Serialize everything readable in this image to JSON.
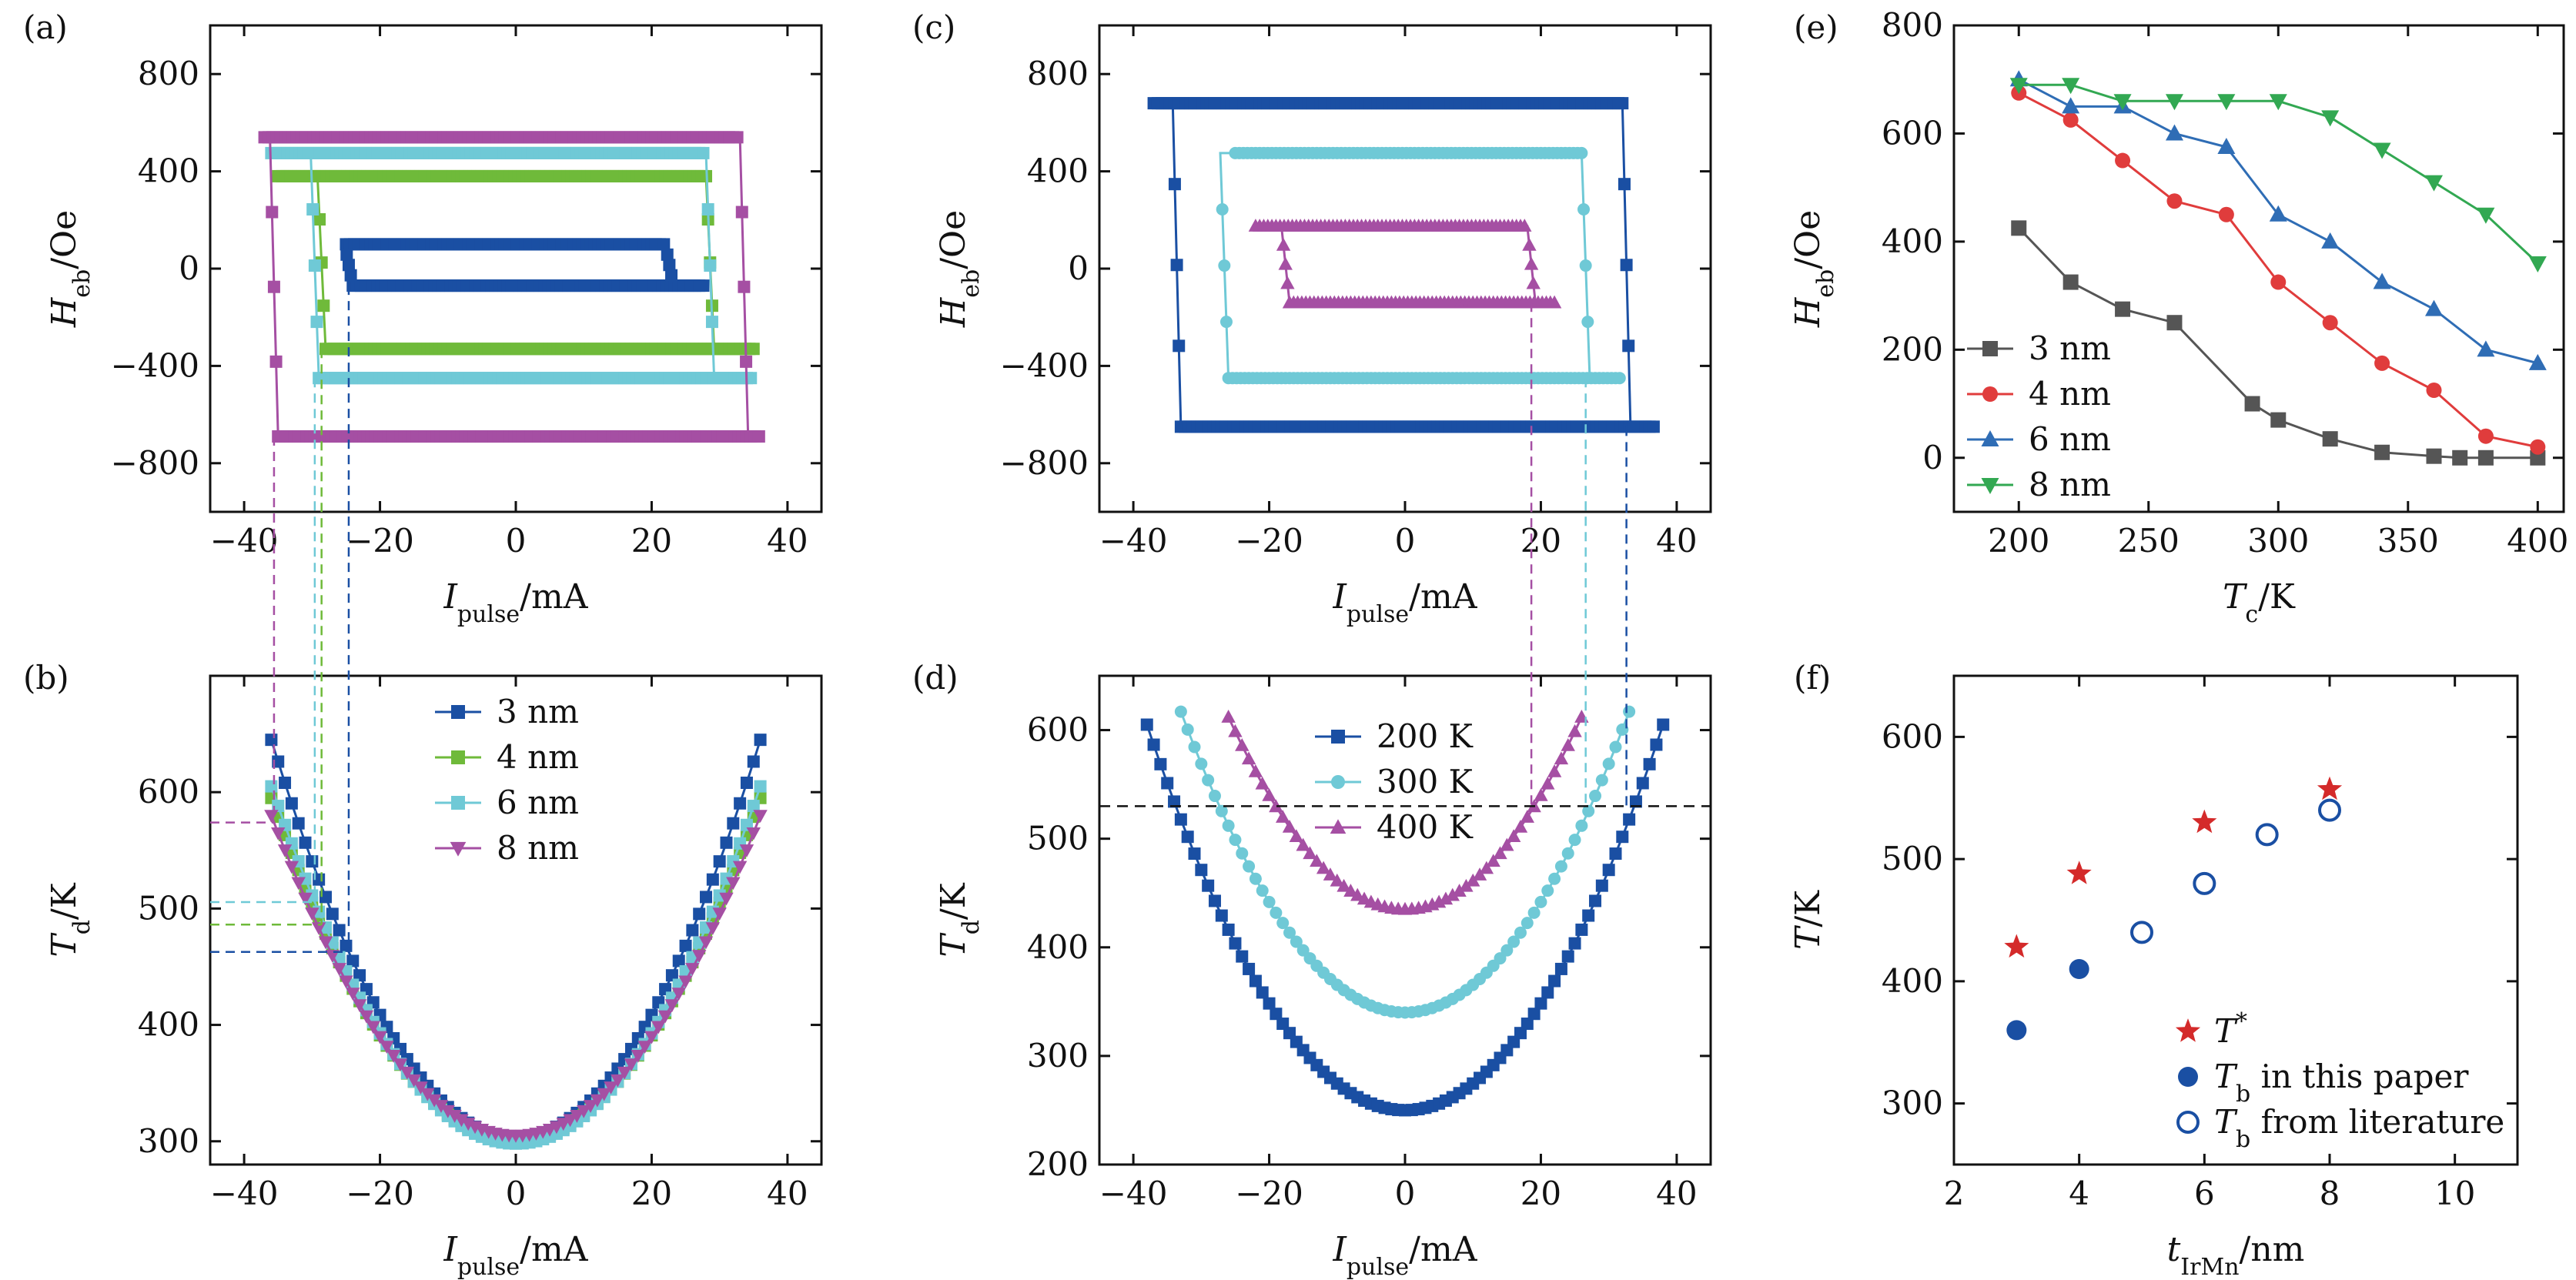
{
  "colors": {
    "nm3": "#1a4fa3",
    "nm4": "#6fba3a",
    "nm6": "#6fc9d6",
    "nm8": "#a54fa3",
    "k200": "#1a4fa3",
    "k300": "#6fc9d6",
    "k400": "#a54fa3",
    "e3": "#555555",
    "e4": "#e03c3c",
    "e6": "#2f6db5",
    "e8": "#32a852",
    "star": "#d42a2a",
    "dot": "#1a4fa3",
    "axis": "#111111"
  },
  "chart_data": [
    {
      "id": "a",
      "panel_label": "(a)",
      "type": "line",
      "xlabel_main": "I",
      "xlabel_sub": "pulse",
      "xlabel_unit": "/mA",
      "ylabel_main": "H",
      "ylabel_sub": "eb",
      "ylabel_unit": "/Oe",
      "xlim": [
        -45,
        45
      ],
      "ylim": [
        -1000,
        1000
      ],
      "xticks": [
        -40,
        -20,
        0,
        20,
        40
      ],
      "xticklabels": [
        "−40",
        "−20",
        "0",
        "20",
        "40"
      ],
      "yticks": [
        -800,
        -400,
        0,
        400,
        800
      ],
      "yticklabels": [
        "−800",
        "−400",
        "0",
        "400",
        "800"
      ],
      "series": [
        {
          "name": "3 nm",
          "color_key": "nm3",
          "marker": "square",
          "upper": 100,
          "lower": -70,
          "xmin": -25,
          "xmax": 28,
          "sw_right": 22,
          "sw_left": -24
        },
        {
          "name": "4 nm",
          "color_key": "nm4",
          "marker": "square",
          "upper": 380,
          "lower": -330,
          "xmin": -35,
          "xmax": 35,
          "sw_right": 28,
          "sw_left": -28
        },
        {
          "name": "6 nm",
          "color_key": "nm6",
          "marker": "square",
          "upper": 475,
          "lower": -450,
          "xmin": -36,
          "xmax": 35,
          "sw_right": 28,
          "sw_left": -29
        },
        {
          "name": "8 nm",
          "color_key": "nm8",
          "marker": "square",
          "upper": 540,
          "lower": -690,
          "xmin": -37,
          "xmax": 36,
          "sw_right": 33,
          "sw_left": -35
        }
      ]
    },
    {
      "id": "b",
      "panel_label": "(b)",
      "type": "line",
      "xlabel_main": "I",
      "xlabel_sub": "pulse",
      "xlabel_unit": "/mA",
      "ylabel_main": "T",
      "ylabel_sub": "d",
      "ylabel_unit": "/K",
      "xlim": [
        -45,
        45
      ],
      "ylim": [
        280,
        700
      ],
      "xticks": [
        -40,
        -20,
        0,
        20,
        40
      ],
      "xticklabels": [
        "−40",
        "−20",
        "0",
        "20",
        "40"
      ],
      "yticks": [
        300,
        400,
        500,
        600
      ],
      "yticklabels": [
        "300",
        "400",
        "500",
        "600"
      ],
      "series": [
        {
          "name": "3 nm",
          "color_key": "nm3",
          "marker": "square",
          "T0": 303,
          "Tend": 645,
          "xmax": 36
        },
        {
          "name": "4 nm",
          "color_key": "nm4",
          "marker": "square",
          "T0": 300,
          "Tend": 595,
          "xmax": 36
        },
        {
          "name": "6 nm",
          "color_key": "nm6",
          "marker": "square",
          "T0": 298,
          "Tend": 605,
          "xmax": 36
        },
        {
          "name": "8 nm",
          "color_key": "nm8",
          "marker": "triangle-down",
          "T0": 305,
          "Tend": 580,
          "xmax": 36
        }
      ],
      "guide_T": [
        433,
        471,
        517,
        563
      ]
    },
    {
      "id": "c",
      "panel_label": "(c)",
      "type": "line",
      "xlabel_main": "I",
      "xlabel_sub": "pulse",
      "xlabel_unit": "/mA",
      "ylabel_main": "H",
      "ylabel_sub": "eb",
      "ylabel_unit": "/Oe",
      "xlim": [
        -45,
        45
      ],
      "ylim": [
        -1000,
        1000
      ],
      "xticks": [
        -40,
        -20,
        0,
        20,
        40
      ],
      "xticklabels": [
        "−40",
        "−20",
        "0",
        "20",
        "40"
      ],
      "yticks": [
        -800,
        -400,
        0,
        400,
        800
      ],
      "yticklabels": [
        "−800",
        "−400",
        "0",
        "400",
        "800"
      ],
      "series": [
        {
          "name": "200 K",
          "color_key": "k200",
          "marker": "square",
          "upper": 680,
          "lower": -650,
          "xmin": -37,
          "xmax": 37,
          "sw_right": 32,
          "sw_left": -33
        },
        {
          "name": "300 K",
          "color_key": "k300",
          "marker": "circle",
          "upper": 475,
          "lower": -450,
          "xmin": -25,
          "xmax": 32,
          "sw_right": 26,
          "sw_left": -26
        },
        {
          "name": "400 K",
          "color_key": "k400",
          "marker": "triangle",
          "upper": 175,
          "lower": -140,
          "xmin": -22,
          "xmax": 22,
          "sw_right": 18,
          "sw_left": -17
        }
      ]
    },
    {
      "id": "d",
      "panel_label": "(d)",
      "type": "line",
      "xlabel_main": "I",
      "xlabel_sub": "pulse",
      "xlabel_unit": "/mA",
      "ylabel_main": "T",
      "ylabel_sub": "d",
      "ylabel_unit": "/K",
      "xlim": [
        -45,
        45
      ],
      "ylim": [
        200,
        650
      ],
      "xticks": [
        -40,
        -20,
        0,
        20,
        40
      ],
      "xticklabels": [
        "−40",
        "−20",
        "0",
        "20",
        "40"
      ],
      "yticks": [
        200,
        300,
        400,
        500,
        600
      ],
      "yticklabels": [
        "200",
        "300",
        "400",
        "500",
        "600"
      ],
      "series": [
        {
          "name": "200 K",
          "color_key": "k200",
          "marker": "square",
          "T0": 250,
          "Tend": 605,
          "xmax": 38
        },
        {
          "name": "300 K",
          "color_key": "k300",
          "marker": "circle",
          "T0": 340,
          "Tend": 617,
          "xmax": 33
        },
        {
          "name": "400 K",
          "color_key": "k400",
          "marker": "triangle",
          "T0": 435,
          "Tend": 612,
          "xmax": 26
        }
      ],
      "hline_T": 530
    },
    {
      "id": "e",
      "panel_label": "(e)",
      "type": "line",
      "xlabel_main": "T",
      "xlabel_sub": "c",
      "xlabel_unit": "/K",
      "ylabel_main": "H",
      "ylabel_sub": "eb",
      "ylabel_unit": "/Oe",
      "xlim": [
        175,
        410
      ],
      "ylim": [
        -100,
        800
      ],
      "xticks": [
        200,
        250,
        300,
        350,
        400
      ],
      "xticklabels": [
        "200",
        "250",
        "300",
        "350",
        "400"
      ],
      "yticks": [
        0,
        200,
        400,
        600,
        800
      ],
      "yticklabels": [
        "0",
        "200",
        "400",
        "600",
        "800"
      ],
      "series": [
        {
          "name": "3 nm",
          "color_key": "e3",
          "marker": "square",
          "x": [
            200,
            220,
            240,
            260,
            290,
            300,
            320,
            340,
            360,
            370,
            380,
            400
          ],
          "y": [
            425,
            325,
            275,
            250,
            100,
            70,
            35,
            10,
            3,
            0,
            0,
            0
          ]
        },
        {
          "name": "4 nm",
          "color_key": "e4",
          "marker": "circle",
          "x": [
            200,
            220,
            240,
            260,
            280,
            300,
            320,
            340,
            360,
            380,
            400
          ],
          "y": [
            675,
            625,
            550,
            475,
            450,
            325,
            250,
            175,
            125,
            40,
            20
          ]
        },
        {
          "name": "6 nm",
          "color_key": "e6",
          "marker": "triangle",
          "x": [
            200,
            220,
            240,
            260,
            280,
            300,
            320,
            340,
            360,
            380,
            400
          ],
          "y": [
            700,
            650,
            650,
            600,
            575,
            450,
            400,
            325,
            275,
            200,
            175
          ]
        },
        {
          "name": "8 nm",
          "color_key": "e8",
          "marker": "triangle-down",
          "x": [
            200,
            220,
            240,
            260,
            280,
            300,
            320,
            340,
            360,
            380,
            400
          ],
          "y": [
            690,
            690,
            660,
            660,
            660,
            660,
            630,
            570,
            510,
            450,
            360
          ]
        }
      ]
    },
    {
      "id": "f",
      "panel_label": "(f)",
      "type": "scatter",
      "xlabel_main": "t",
      "xlabel_sub": "IrMn",
      "xlabel_unit": "/nm",
      "ylabel_main": "T",
      "ylabel_sub": "",
      "ylabel_unit": "/K",
      "xlim": [
        2,
        11
      ],
      "ylim": [
        250,
        650
      ],
      "xticks": [
        2,
        4,
        6,
        8,
        10
      ],
      "xticklabels": [
        "2",
        "4",
        "6",
        "8",
        "10"
      ],
      "yticks": [
        300,
        400,
        500,
        600
      ],
      "yticklabels": [
        "300",
        "400",
        "500",
        "600"
      ],
      "series": [
        {
          "name": "T*",
          "legend_main": "T",
          "legend_sup": "*",
          "legend_sub": "",
          "legend_rest": "",
          "color_key": "star",
          "marker": "star",
          "x": [
            3,
            4,
            6,
            8
          ],
          "y": [
            428,
            488,
            530,
            557
          ]
        },
        {
          "name": "Tb in this paper",
          "legend_main": "T",
          "legend_sup": "",
          "legend_sub": "b",
          "legend_rest": " in this paper",
          "color_key": "dot",
          "marker": "circle",
          "x": [
            3,
            4
          ],
          "y": [
            360,
            410
          ]
        },
        {
          "name": "Tb from literature",
          "legend_main": "T",
          "legend_sup": "",
          "legend_sub": "b",
          "legend_rest": " from literature",
          "color_key": "dot",
          "marker": "circle-open",
          "x": [
            5,
            6,
            7,
            8
          ],
          "y": [
            440,
            480,
            520,
            540
          ]
        }
      ]
    }
  ]
}
